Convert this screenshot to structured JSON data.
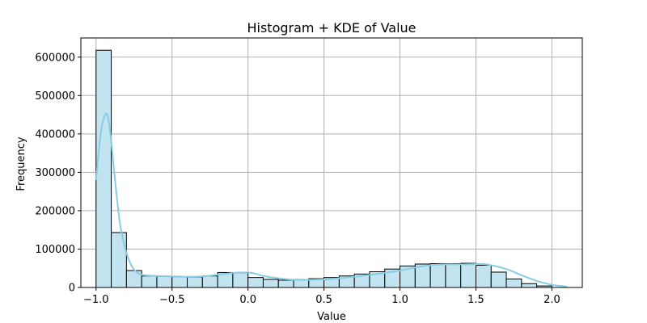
{
  "chart_data": {
    "type": "bar",
    "title": "Histogram + KDE of Value",
    "xlabel": "Value",
    "ylabel": "Frequency",
    "xlim": [
      -1.1,
      2.2
    ],
    "ylim": [
      0,
      650000
    ],
    "xticks": [
      -1.0,
      -0.5,
      0.0,
      0.5,
      1.0,
      1.5,
      2.0
    ],
    "xtick_labels": [
      "−1.0",
      "−0.5",
      "0.0",
      "0.5",
      "1.0",
      "1.5",
      "2.0"
    ],
    "yticks": [
      0,
      100000,
      200000,
      300000,
      400000,
      500000,
      600000
    ],
    "ytick_labels": [
      "0",
      "100000",
      "200000",
      "300000",
      "400000",
      "500000",
      "600000"
    ],
    "grid": true,
    "bar_color": "#c2e3f0",
    "bar_edge_color": "#000000",
    "kde_color": "#87cce4",
    "bins": {
      "start": -1.0,
      "width": 0.1,
      "values": [
        618000,
        143000,
        44000,
        30000,
        29000,
        28000,
        27000,
        30000,
        39000,
        38000,
        26000,
        21000,
        19000,
        21000,
        23000,
        26000,
        30000,
        35000,
        41000,
        48000,
        56000,
        61000,
        62000,
        62000,
        63000,
        58000,
        40000,
        22000,
        10000,
        4000
      ]
    },
    "kde": {
      "x": [
        -1.0,
        -0.97,
        -0.94,
        -0.92,
        -0.9,
        -0.87,
        -0.84,
        -0.8,
        -0.76,
        -0.72,
        -0.68,
        -0.6,
        -0.5,
        -0.4,
        -0.3,
        -0.2,
        -0.1,
        0.0,
        0.05,
        0.1,
        0.2,
        0.3,
        0.4,
        0.5,
        0.6,
        0.7,
        0.8,
        0.9,
        1.0,
        1.1,
        1.2,
        1.3,
        1.4,
        1.5,
        1.55,
        1.6,
        1.7,
        1.8,
        1.9,
        2.0,
        2.1
      ],
      "y": [
        280000,
        400000,
        450000,
        440000,
        380000,
        260000,
        160000,
        90000,
        52000,
        36000,
        32000,
        30000,
        29000,
        28000,
        29000,
        33000,
        38000,
        39000,
        36000,
        30000,
        24000,
        20000,
        20000,
        21000,
        24000,
        28000,
        33000,
        38000,
        44000,
        52000,
        58000,
        60000,
        60000,
        61000,
        61000,
        58000,
        48000,
        32000,
        17000,
        7000,
        2000
      ]
    }
  }
}
